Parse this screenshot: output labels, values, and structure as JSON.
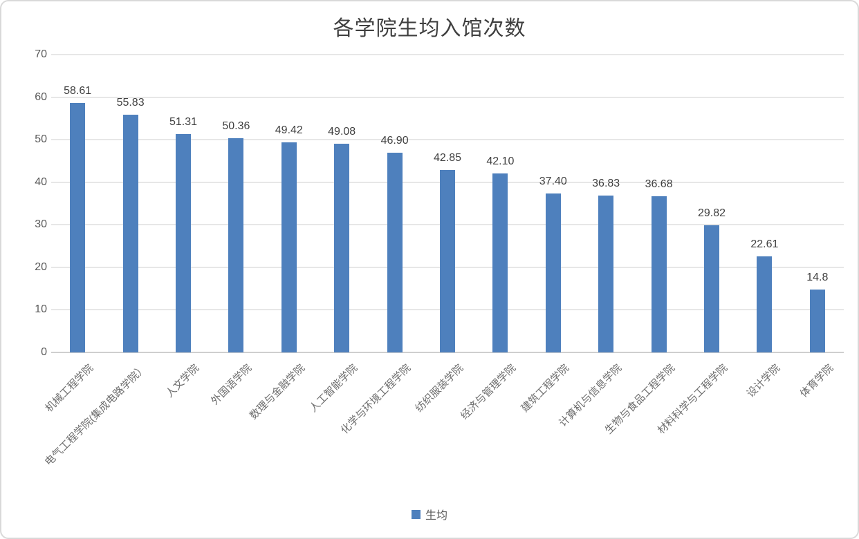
{
  "chart_data": {
    "type": "bar",
    "title": "各学院生均入馆次数",
    "categories": [
      "机械工程学院",
      "电气工程学院(集成电路学院）",
      "人文学院",
      "外国语学院",
      "数理与金融学院",
      "人工智能学院",
      "化学与环境工程学院",
      "纺织服装学院",
      "经济与管理学院",
      "建筑工程学院",
      "计算机与信息学院",
      "生物与食品工程学院",
      "材料科学与工程学院",
      "设计学院",
      "体育学院"
    ],
    "series": [
      {
        "name": "生均",
        "values": [
          58.61,
          55.83,
          51.31,
          50.36,
          49.42,
          49.08,
          46.9,
          42.85,
          42.1,
          37.4,
          36.83,
          36.68,
          29.82,
          22.61,
          14.8
        ]
      }
    ],
    "value_labels": [
      "58.61",
      "55.83",
      "51.31",
      "50.36",
      "49.42",
      "49.08",
      "46.90",
      "42.85",
      "42.10",
      "37.40",
      "36.83",
      "36.68",
      "29.82",
      "22.61",
      "14.8"
    ],
    "xlabel": "",
    "ylabel": "",
    "ylim": [
      0,
      70
    ],
    "y_ticks": [
      0,
      10,
      20,
      30,
      40,
      50,
      60,
      70
    ],
    "grid": true,
    "legend_position": "bottom",
    "bar_color": "#4e80bd",
    "gridline_color": "#e7e7e7",
    "axis_line_color": "#cfcfcf",
    "text_color": "#595959",
    "value_label_color": "#404040"
  },
  "legend": {
    "label": "生均",
    "swatch_color": "#4e80bd"
  }
}
